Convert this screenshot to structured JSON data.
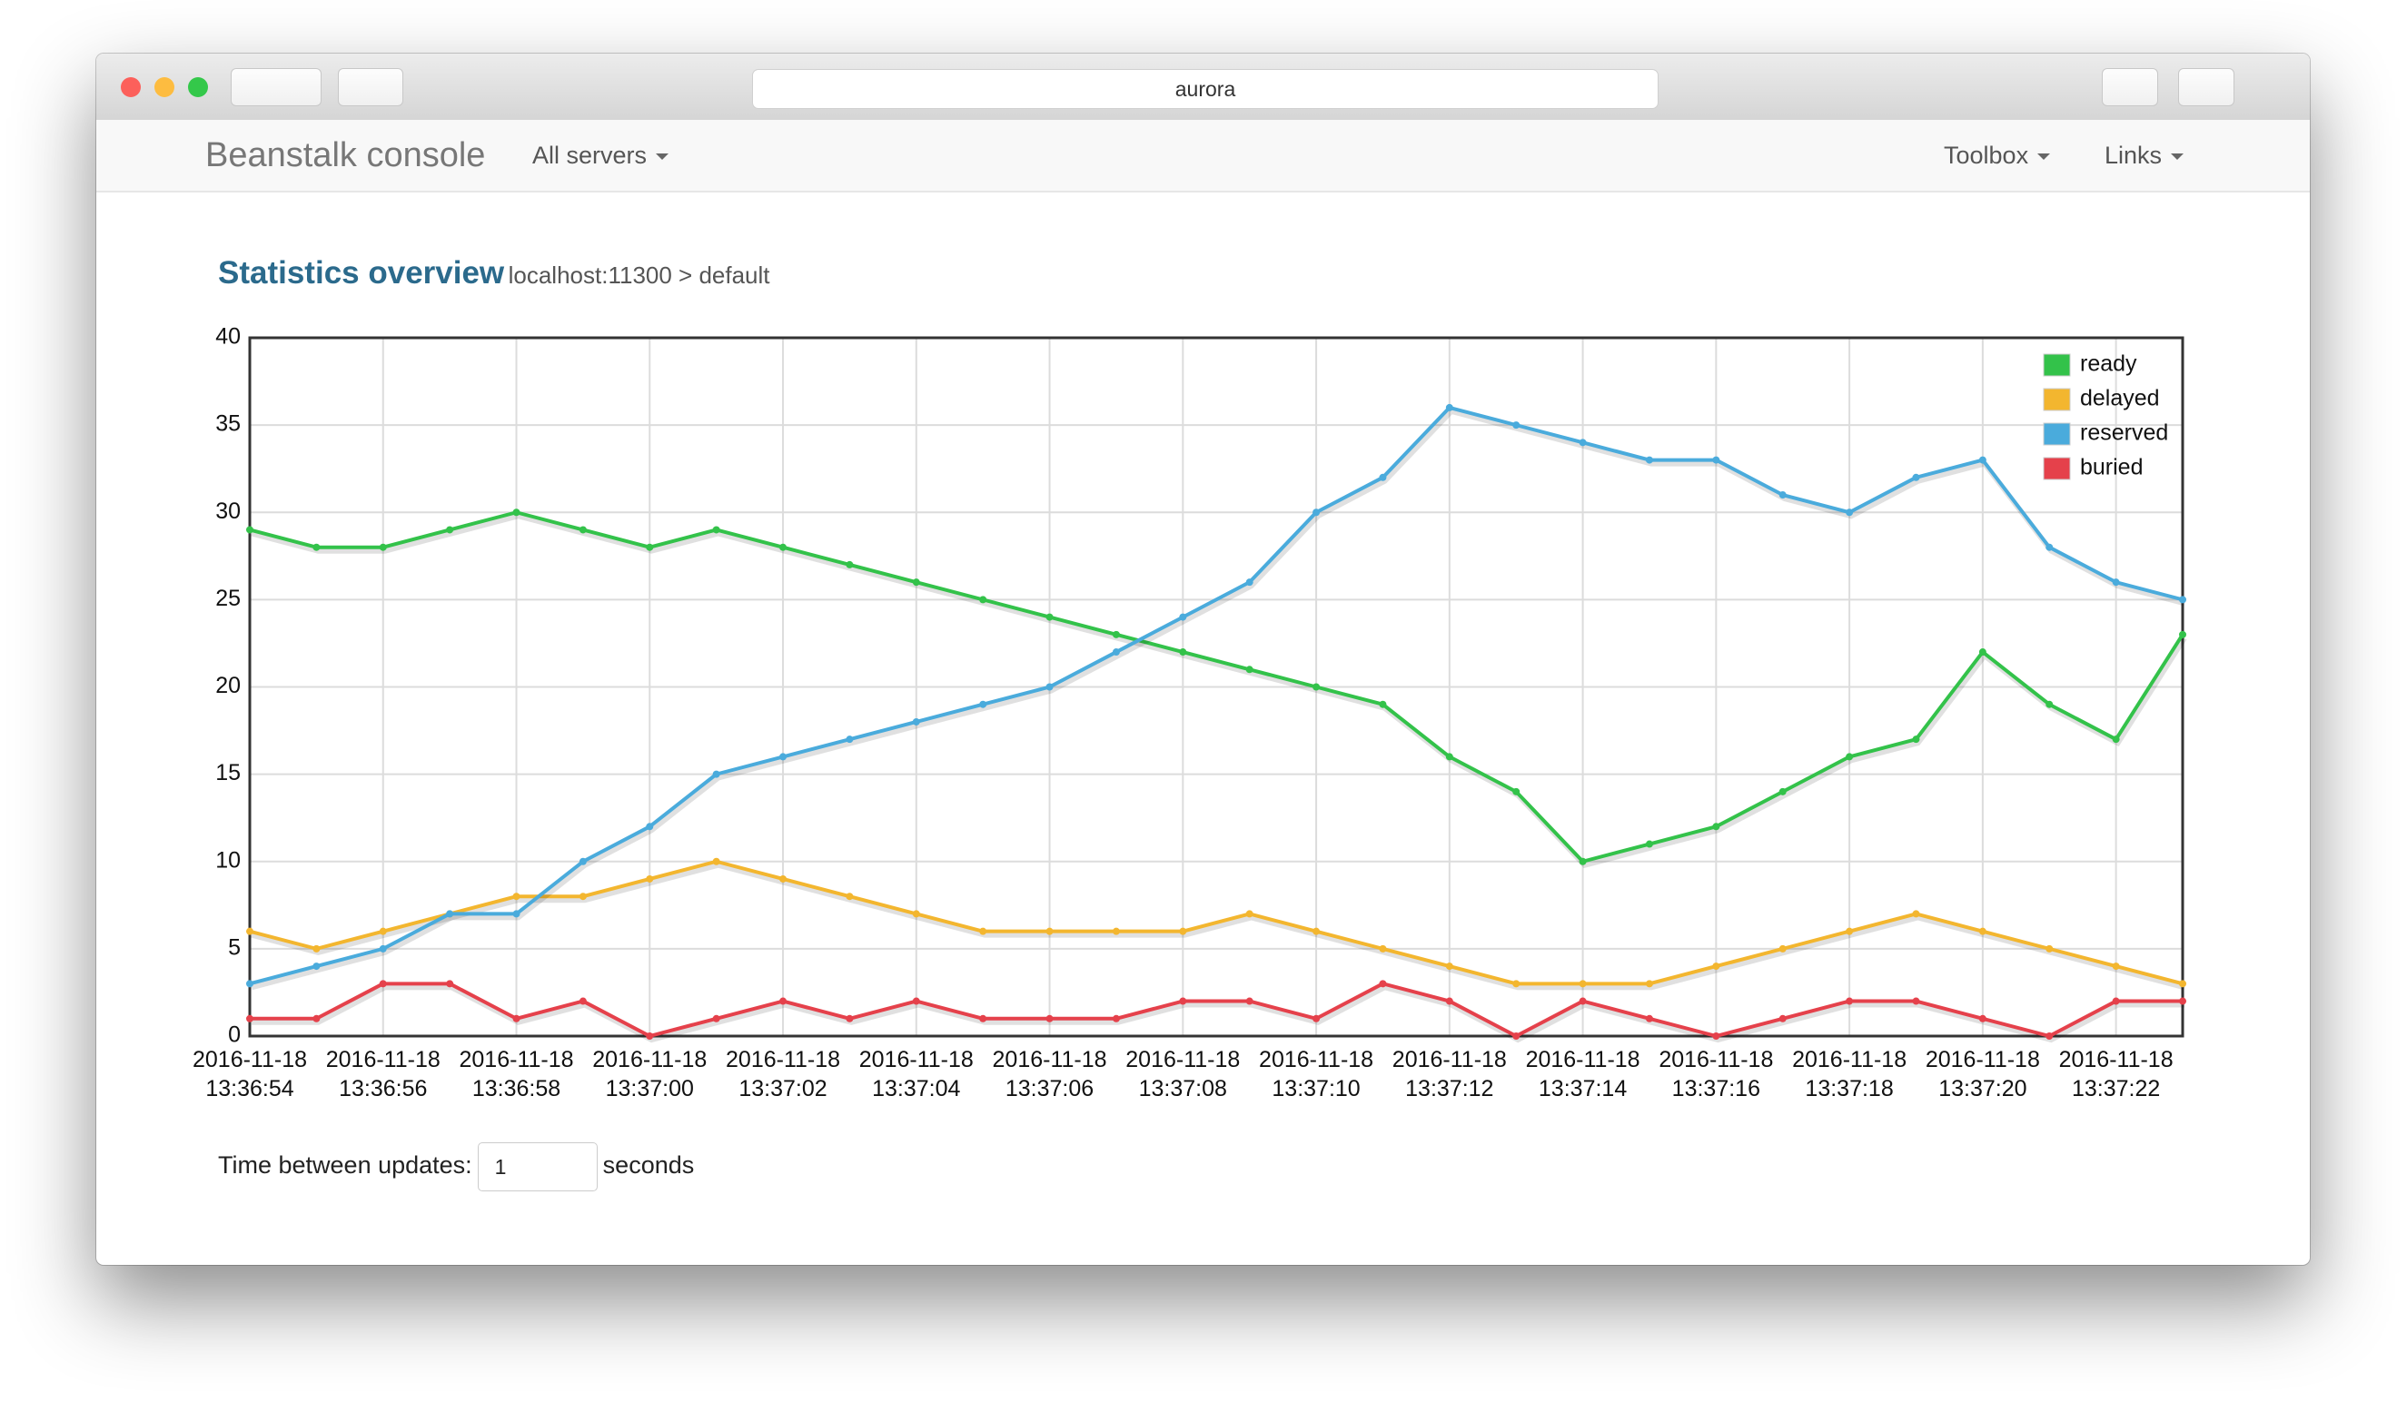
{
  "browser": {
    "address": "aurora"
  },
  "navbar": {
    "brand": "Beanstalk console",
    "servers_menu": "All servers",
    "toolbox_menu": "Toolbox",
    "links_menu": "Links"
  },
  "heading": {
    "title": "Statistics overview",
    "subtitle": "localhost:11300 > default"
  },
  "chart_data": {
    "type": "line",
    "categories": [
      "2016-11-18 13:36:54",
      null,
      "2016-11-18 13:36:56",
      null,
      "2016-11-18 13:36:58",
      null,
      "2016-11-18 13:37:00",
      null,
      "2016-11-18 13:37:02",
      null,
      "2016-11-18 13:37:04",
      null,
      "2016-11-18 13:37:06",
      null,
      "2016-11-18 13:37:08",
      null,
      "2016-11-18 13:37:10",
      null,
      "2016-11-18 13:37:12",
      null,
      "2016-11-18 13:37:14",
      null,
      "2016-11-18 13:37:16",
      null,
      "2016-11-18 13:37:18",
      null,
      "2016-11-18 13:37:20",
      null,
      "2016-11-18 13:37:22",
      null
    ],
    "series": [
      {
        "name": "ready",
        "color": "#33c24a",
        "values": [
          29,
          28,
          28,
          29,
          30,
          29,
          28,
          29,
          28,
          27,
          26,
          25,
          24,
          23,
          22,
          21,
          20,
          19,
          16,
          14,
          10,
          11,
          12,
          14,
          16,
          17,
          22,
          19,
          17,
          23
        ]
      },
      {
        "name": "delayed",
        "color": "#f3b62f",
        "values": [
          6,
          5,
          6,
          7,
          8,
          8,
          9,
          10,
          9,
          8,
          7,
          6,
          6,
          6,
          6,
          7,
          6,
          5,
          4,
          3,
          3,
          3,
          4,
          5,
          6,
          7,
          6,
          5,
          4,
          3
        ]
      },
      {
        "name": "reserved",
        "color": "#4aabdc",
        "values": [
          3,
          4,
          5,
          7,
          7,
          10,
          12,
          15,
          16,
          17,
          18,
          19,
          20,
          22,
          24,
          26,
          30,
          32,
          36,
          35,
          34,
          33,
          33,
          31,
          30,
          32,
          33,
          28,
          26,
          25
        ]
      },
      {
        "name": "buried",
        "color": "#e5414b",
        "values": [
          1,
          1,
          3,
          3,
          1,
          2,
          0,
          1,
          2,
          1,
          2,
          1,
          1,
          1,
          2,
          2,
          1,
          3,
          2,
          0,
          2,
          1,
          0,
          1,
          2,
          2,
          1,
          0,
          2,
          2
        ]
      }
    ],
    "ylim": [
      0,
      40
    ],
    "yticks": [
      0,
      5,
      10,
      15,
      20,
      25,
      30,
      35,
      40
    ],
    "grid": true,
    "legend": "top-right"
  },
  "controls": {
    "label": "Time between updates:",
    "value": "1",
    "unit": "seconds"
  }
}
